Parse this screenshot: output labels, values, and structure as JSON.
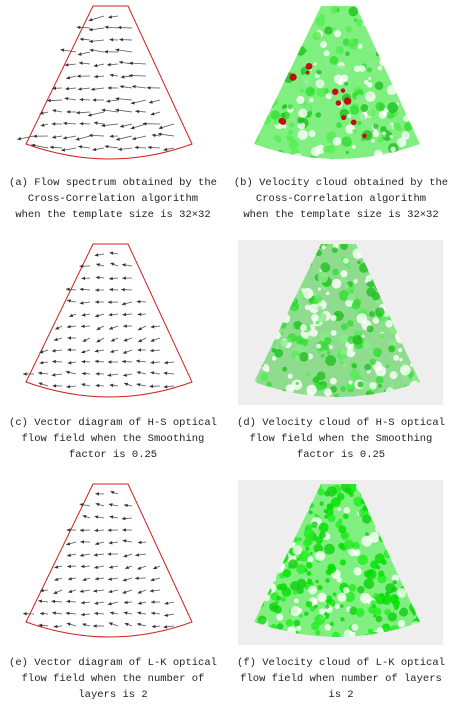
{
  "panels": [
    {
      "caption": [
        "(a) Flow spectrum obtained by the",
        "Cross-Correlation algorithm",
        "when the template size is 32×32"
      ]
    },
    {
      "caption": [
        "(b) Velocity cloud obtained by the",
        "Cross-Correlation algorithm",
        "when the template size is 32×32"
      ]
    },
    {
      "caption": [
        "(c) Vector diagram of H-S optical",
        "flow field when the Smoothing",
        "factor is 0.25"
      ]
    },
    {
      "caption": [
        "(d) Velocity cloud of H-S optical",
        "flow field when the Smoothing",
        "factor is 0.25"
      ]
    },
    {
      "caption": [
        "(e) Vector diagram of L-K optical",
        "flow field when the number of",
        "layers is 2"
      ]
    },
    {
      "caption": [
        "(f) Velocity cloud of L-K optical",
        "flow field when number of layers",
        "is 2"
      ]
    }
  ]
}
